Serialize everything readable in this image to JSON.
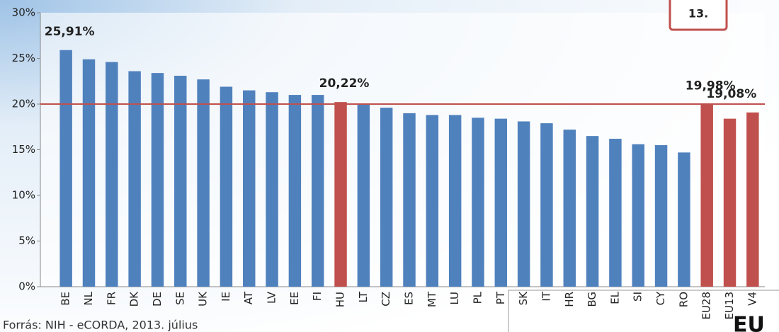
{
  "chart_data": {
    "type": "bar",
    "categories": [
      "BE",
      "NL",
      "FR",
      "DK",
      "DE",
      "SE",
      "UK",
      "IE",
      "AT",
      "LV",
      "EE",
      "FI",
      "HU",
      "LT",
      "CZ",
      "ES",
      "MT",
      "LU",
      "PL",
      "PT",
      "SK",
      "IT",
      "HR",
      "BG",
      "EL",
      "SI",
      "CY",
      "RO",
      "EU28",
      "EU13",
      "V4"
    ],
    "values": [
      25.91,
      24.9,
      24.6,
      23.6,
      23.4,
      23.1,
      22.7,
      21.9,
      21.5,
      21.3,
      21.0,
      21.0,
      20.22,
      20.0,
      19.6,
      19.0,
      18.8,
      18.8,
      18.5,
      18.4,
      18.1,
      17.9,
      17.2,
      16.5,
      16.2,
      15.6,
      15.5,
      14.7,
      19.98,
      18.4,
      19.08
    ],
    "value_labels": [
      "25,91%",
      null,
      null,
      null,
      null,
      null,
      null,
      null,
      null,
      null,
      null,
      null,
      "20,22%",
      null,
      null,
      null,
      null,
      null,
      null,
      null,
      null,
      null,
      null,
      null,
      null,
      null,
      null,
      null,
      "19,98%",
      null,
      "19,08%"
    ],
    "colors": [
      "#4f81bd",
      "#4f81bd",
      "#4f81bd",
      "#4f81bd",
      "#4f81bd",
      "#4f81bd",
      "#4f81bd",
      "#4f81bd",
      "#4f81bd",
      "#4f81bd",
      "#4f81bd",
      "#4f81bd",
      "#c0504d",
      "#4f81bd",
      "#4f81bd",
      "#4f81bd",
      "#4f81bd",
      "#4f81bd",
      "#4f81bd",
      "#4f81bd",
      "#4f81bd",
      "#4f81bd",
      "#4f81bd",
      "#4f81bd",
      "#4f81bd",
      "#4f81bd",
      "#4f81bd",
      "#4f81bd",
      "#c0504d",
      "#c0504d",
      "#c0504d"
    ],
    "ylim": [
      0,
      30
    ],
    "yticks": [
      {
        "value": 0,
        "label": "0%"
      },
      {
        "value": 5,
        "label": "5%"
      },
      {
        "value": 10,
        "label": "10%"
      },
      {
        "value": 15,
        "label": "15%"
      },
      {
        "value": 20,
        "label": "20%"
      },
      {
        "value": 25,
        "label": "25%"
      },
      {
        "value": 30,
        "label": "30%"
      }
    ],
    "reference_line": 20,
    "reference_color": "#c0504d",
    "source": "Forrás: NIH - eCORDA, 2013. július",
    "callout": "13.",
    "corner_label": "EU"
  }
}
